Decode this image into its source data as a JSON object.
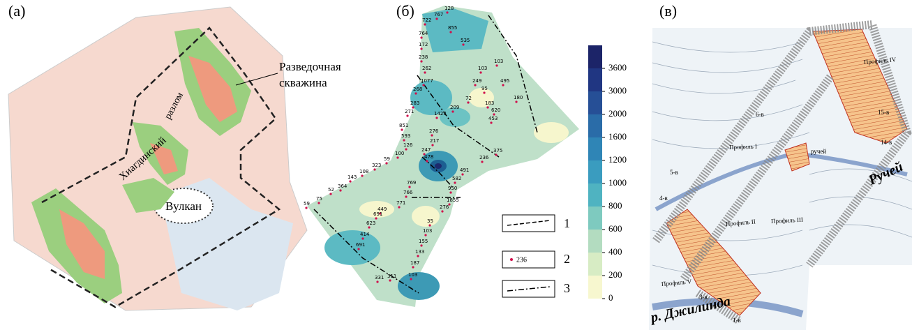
{
  "panel_a": {
    "label": "(а)",
    "annotations": [
      "Разведочная",
      "скважина",
      "Хиагдинский",
      "разлом",
      "Вулкан"
    ]
  },
  "panel_b": {
    "label": "(б)",
    "wells": [
      128,
      767,
      722,
      855,
      764,
      535,
      172,
      238,
      103,
      103,
      262,
      249,
      495,
      180,
      1077,
      268,
      95,
      72,
      209,
      1423,
      183,
      620,
      283,
      271,
      453,
      276,
      851,
      593,
      217,
      247,
      126,
      375,
      236,
      100,
      478,
      59,
      323,
      491,
      108,
      143,
      582,
      364,
      769,
      766,
      950,
      52,
      75,
      59,
      771,
      1855,
      276,
      449,
      35,
      691,
      623,
      103,
      414,
      155,
      691,
      133,
      187,
      331,
      311,
      103
    ],
    "colorbar": {
      "ticks": [
        0,
        200,
        400,
        600,
        800,
        1000,
        1200,
        1600,
        2000,
        3000,
        3600
      ]
    },
    "legend": {
      "items": [
        "1",
        "2",
        "3"
      ],
      "sample_label": "236"
    }
  },
  "panel_c": {
    "label": "(в)",
    "annotations": [
      "Ручей",
      "р. Джилинда",
      "Профиль I",
      "Профиль II",
      "Профиль III",
      "Профиль IV",
      "Профиль V",
      "15-в",
      "14-в",
      "6-в",
      "5-в",
      "4-в",
      "3-в",
      "1-в",
      "ручей"
    ]
  }
}
